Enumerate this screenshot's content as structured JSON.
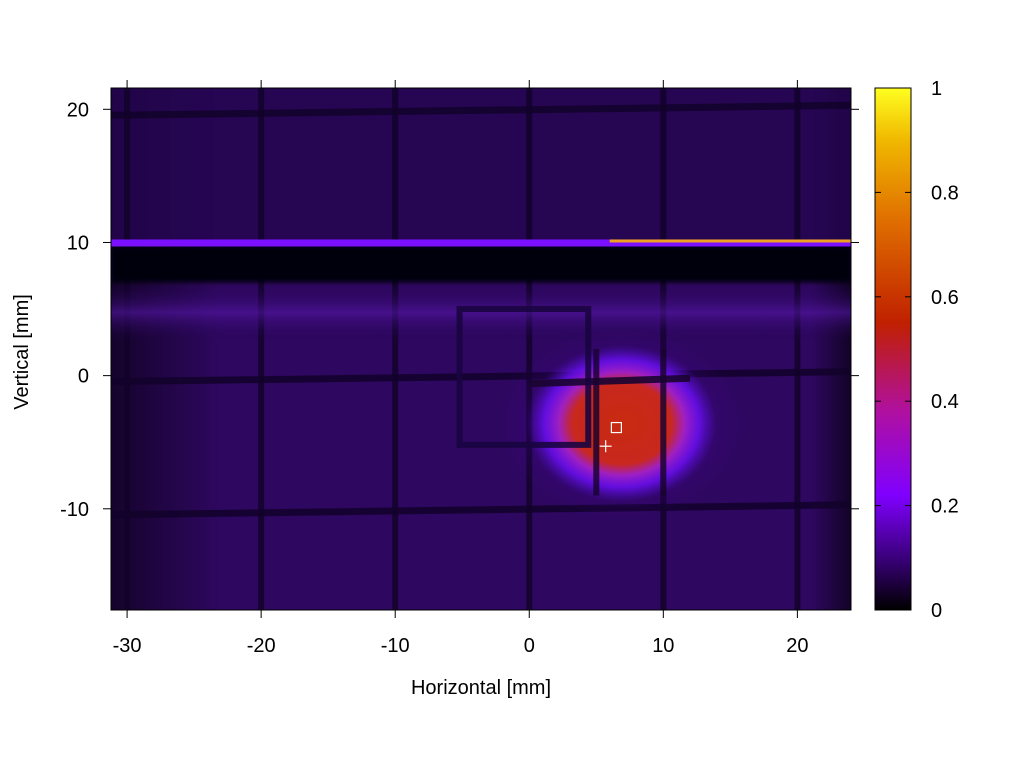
{
  "chart_data": {
    "type": "heatmap",
    "xlabel": "Horizontal [mm]",
    "ylabel": "Vertical [mm]",
    "xlim": [
      -31.2,
      24
    ],
    "ylim": [
      -17.6,
      21.6
    ],
    "xticks": [
      -30,
      -20,
      -10,
      0,
      10,
      20
    ],
    "yticks": [
      -10,
      0,
      10,
      20
    ],
    "colorbar": {
      "min": 0,
      "max": 1,
      "ticks": [
        0,
        0.2,
        0.4,
        0.6,
        0.8,
        1
      ],
      "colormap": [
        "#000000",
        "#3a007a",
        "#8000ff",
        "#c0206a",
        "#c02000",
        "#e07000",
        "#f0b000",
        "#ffff20"
      ]
    },
    "gridlines_dark": {
      "x": [
        -30,
        -20,
        -10,
        0,
        10,
        20
      ],
      "y": [
        -10,
        0,
        20
      ]
    },
    "horizontal_bar": {
      "y_bright": 10,
      "dark_band": [
        7,
        9.8
      ]
    },
    "beam_spot": {
      "center": [
        6.9,
        -3.6
      ],
      "intensity": 0.5
    },
    "markers": [
      {
        "type": "square",
        "x": 6.5,
        "y": -3.9
      },
      {
        "type": "plus",
        "x": 5.7,
        "y": -5.3
      }
    ],
    "frame_box": {
      "x": [
        -5.2,
        4.4
      ],
      "y": [
        -5.2,
        5
      ]
    }
  }
}
